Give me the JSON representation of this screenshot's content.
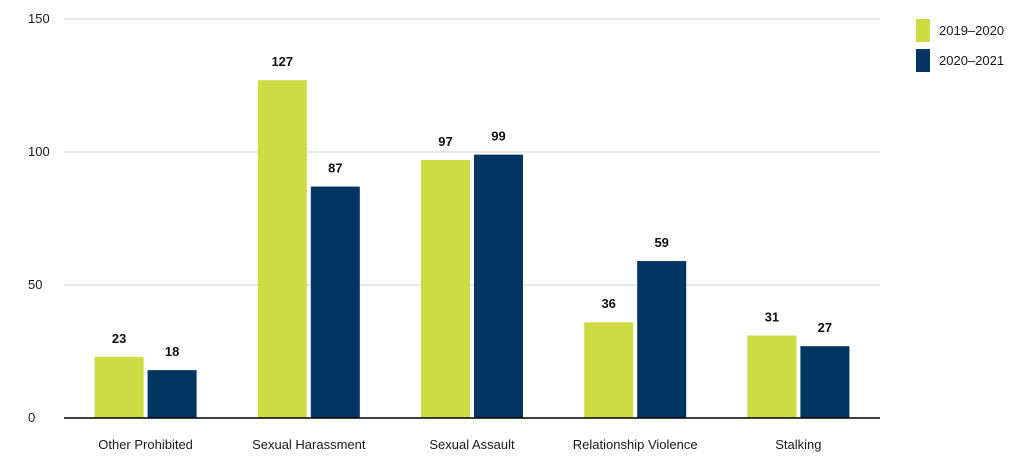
{
  "chart_data": {
    "type": "bar",
    "categories": [
      "Other Prohibited",
      "Sexual Harassment",
      "Sexual Assault",
      "Relationship Violence",
      "Stalking"
    ],
    "series": [
      {
        "name": "2019–2020",
        "values": [
          23,
          127,
          97,
          36,
          31
        ],
        "color": "#cddc42"
      },
      {
        "name": "2020–2021",
        "values": [
          18,
          87,
          99,
          59,
          27
        ],
        "color": "#003461"
      }
    ],
    "ylim": [
      0,
      150
    ],
    "yticks": [
      0,
      50,
      100,
      150
    ],
    "grid": true,
    "legend": "top-right",
    "title": "",
    "xlabel": "",
    "ylabel": ""
  }
}
